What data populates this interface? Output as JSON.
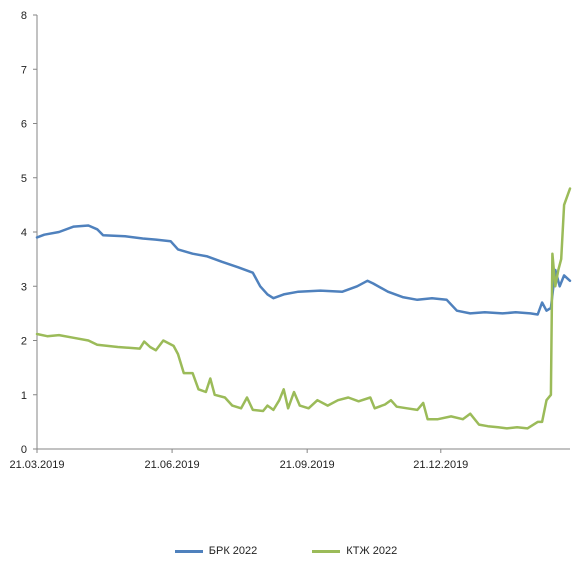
{
  "chart_data": {
    "type": "line",
    "ylim": [
      0,
      8
    ],
    "yticks": [
      "0",
      "1",
      "2",
      "3",
      "4",
      "5",
      "6",
      "7",
      "8"
    ],
    "xlim": [
      "2019-03-21",
      "2020-03-18"
    ],
    "xticks": [
      {
        "date": "2019-03-21",
        "label": "21.03.2019"
      },
      {
        "date": "2019-06-21",
        "label": "21.06.2019"
      },
      {
        "date": "2019-09-21",
        "label": "21.09.2019"
      },
      {
        "date": "2019-12-21",
        "label": "21.12.2019"
      }
    ],
    "legend_position": "bottom",
    "series": [
      {
        "name": "БРК 2022",
        "color": "#4F81BD",
        "points": [
          [
            "2019-03-21",
            3.9
          ],
          [
            "2019-03-26",
            3.95
          ],
          [
            "2019-04-05",
            4.0
          ],
          [
            "2019-04-15",
            4.1
          ],
          [
            "2019-04-25",
            4.12
          ],
          [
            "2019-05-01",
            4.05
          ],
          [
            "2019-05-05",
            3.94
          ],
          [
            "2019-05-20",
            3.92
          ],
          [
            "2019-06-01",
            3.88
          ],
          [
            "2019-06-10",
            3.86
          ],
          [
            "2019-06-20",
            3.83
          ],
          [
            "2019-06-25",
            3.68
          ],
          [
            "2019-07-05",
            3.6
          ],
          [
            "2019-07-15",
            3.55
          ],
          [
            "2019-07-25",
            3.45
          ],
          [
            "2019-08-05",
            3.35
          ],
          [
            "2019-08-15",
            3.25
          ],
          [
            "2019-08-20",
            3.0
          ],
          [
            "2019-08-25",
            2.85
          ],
          [
            "2019-08-29",
            2.78
          ],
          [
            "2019-09-05",
            2.85
          ],
          [
            "2019-09-15",
            2.9
          ],
          [
            "2019-09-30",
            2.92
          ],
          [
            "2019-10-15",
            2.9
          ],
          [
            "2019-10-25",
            3.0
          ],
          [
            "2019-11-01",
            3.1
          ],
          [
            "2019-11-05",
            3.05
          ],
          [
            "2019-11-15",
            2.9
          ],
          [
            "2019-11-25",
            2.8
          ],
          [
            "2019-12-05",
            2.75
          ],
          [
            "2019-12-15",
            2.78
          ],
          [
            "2019-12-25",
            2.75
          ],
          [
            "2020-01-01",
            2.55
          ],
          [
            "2020-01-10",
            2.5
          ],
          [
            "2020-01-20",
            2.52
          ],
          [
            "2020-02-01",
            2.5
          ],
          [
            "2020-02-10",
            2.52
          ],
          [
            "2020-02-20",
            2.5
          ],
          [
            "2020-02-25",
            2.48
          ],
          [
            "2020-02-28",
            2.7
          ],
          [
            "2020-03-02",
            2.55
          ],
          [
            "2020-03-05",
            2.6
          ],
          [
            "2020-03-08",
            3.3
          ],
          [
            "2020-03-11",
            3.0
          ],
          [
            "2020-03-14",
            3.2
          ],
          [
            "2020-03-18",
            3.1
          ]
        ]
      },
      {
        "name": "КТЖ 2022",
        "color": "#9BBB59",
        "points": [
          [
            "2019-03-21",
            2.12
          ],
          [
            "2019-03-28",
            2.08
          ],
          [
            "2019-04-05",
            2.1
          ],
          [
            "2019-04-15",
            2.05
          ],
          [
            "2019-04-25",
            2.0
          ],
          [
            "2019-05-01",
            1.92
          ],
          [
            "2019-05-15",
            1.88
          ],
          [
            "2019-05-30",
            1.85
          ],
          [
            "2019-06-02",
            1.98
          ],
          [
            "2019-06-06",
            1.88
          ],
          [
            "2019-06-10",
            1.82
          ],
          [
            "2019-06-15",
            2.0
          ],
          [
            "2019-06-22",
            1.9
          ],
          [
            "2019-06-25",
            1.75
          ],
          [
            "2019-06-29",
            1.4
          ],
          [
            "2019-07-05",
            1.4
          ],
          [
            "2019-07-09",
            1.1
          ],
          [
            "2019-07-14",
            1.05
          ],
          [
            "2019-07-17",
            1.3
          ],
          [
            "2019-07-20",
            1.0
          ],
          [
            "2019-07-27",
            0.95
          ],
          [
            "2019-08-01",
            0.8
          ],
          [
            "2019-08-07",
            0.75
          ],
          [
            "2019-08-11",
            0.95
          ],
          [
            "2019-08-15",
            0.72
          ],
          [
            "2019-08-22",
            0.7
          ],
          [
            "2019-08-25",
            0.8
          ],
          [
            "2019-08-29",
            0.72
          ],
          [
            "2019-09-02",
            0.9
          ],
          [
            "2019-09-05",
            1.1
          ],
          [
            "2019-09-08",
            0.75
          ],
          [
            "2019-09-12",
            1.05
          ],
          [
            "2019-09-16",
            0.8
          ],
          [
            "2019-09-22",
            0.75
          ],
          [
            "2019-09-28",
            0.9
          ],
          [
            "2019-10-05",
            0.8
          ],
          [
            "2019-10-12",
            0.9
          ],
          [
            "2019-10-19",
            0.95
          ],
          [
            "2019-10-26",
            0.88
          ],
          [
            "2019-11-03",
            0.95
          ],
          [
            "2019-11-06",
            0.75
          ],
          [
            "2019-11-13",
            0.82
          ],
          [
            "2019-11-17",
            0.9
          ],
          [
            "2019-11-21",
            0.78
          ],
          [
            "2019-11-28",
            0.75
          ],
          [
            "2019-12-05",
            0.72
          ],
          [
            "2019-12-09",
            0.85
          ],
          [
            "2019-12-12",
            0.55
          ],
          [
            "2019-12-19",
            0.55
          ],
          [
            "2019-12-28",
            0.6
          ],
          [
            "2020-01-05",
            0.55
          ],
          [
            "2020-01-10",
            0.65
          ],
          [
            "2020-01-16",
            0.45
          ],
          [
            "2020-01-22",
            0.42
          ],
          [
            "2020-01-29",
            0.4
          ],
          [
            "2020-02-04",
            0.38
          ],
          [
            "2020-02-11",
            0.4
          ],
          [
            "2020-02-18",
            0.38
          ],
          [
            "2020-02-25",
            0.5
          ],
          [
            "2020-02-28",
            0.5
          ],
          [
            "2020-03-02",
            0.9
          ],
          [
            "2020-03-05",
            1.0
          ],
          [
            "2020-03-06",
            3.6
          ],
          [
            "2020-03-08",
            3.0
          ],
          [
            "2020-03-10",
            3.3
          ],
          [
            "2020-03-12",
            3.5
          ],
          [
            "2020-03-14",
            4.5
          ],
          [
            "2020-03-18",
            4.8
          ]
        ]
      }
    ]
  }
}
